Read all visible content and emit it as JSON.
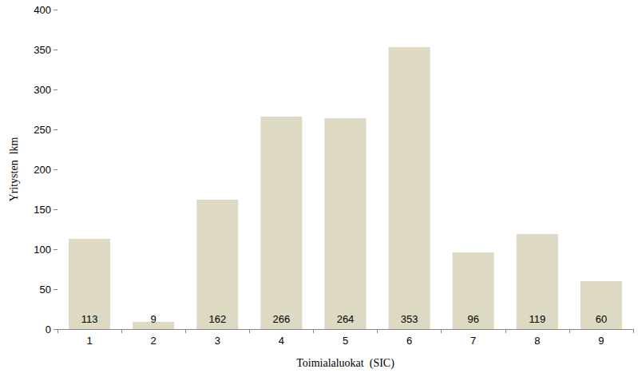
{
  "chart_data": {
    "type": "bar",
    "xlabel": "Toimialaluokat  (SIC)",
    "ylabel": "Yritysten  lkm",
    "categories": [
      "1",
      "2",
      "3",
      "4",
      "5",
      "6",
      "7",
      "8",
      "9"
    ],
    "values": [
      113,
      9,
      162,
      266,
      264,
      353,
      96,
      119,
      60
    ],
    "color": "#ddd9c3",
    "ylim": [
      0,
      400
    ],
    "yticks": [
      0,
      50,
      100,
      150,
      200,
      250,
      300,
      350,
      400
    ],
    "grid": false,
    "data_labels": true
  }
}
